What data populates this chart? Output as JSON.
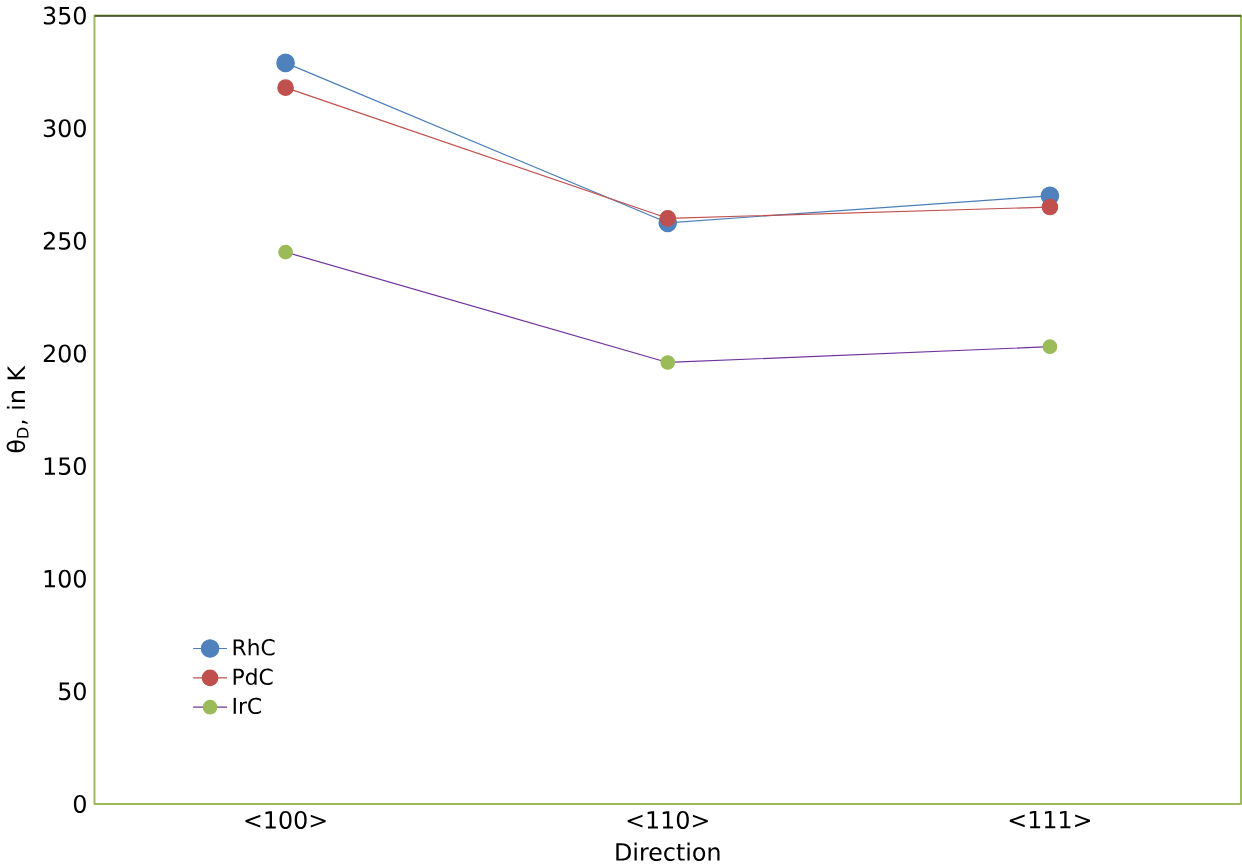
{
  "chart_data": {
    "type": "line",
    "xlabel": "Direction",
    "ylabel": "θ$_{D}$, in K",
    "categories": [
      "<100>",
      "<110>",
      "<111>"
    ],
    "series": [
      {
        "name": "RhC",
        "color": "#4a7ebb",
        "colors": [
          "#4f81bd",
          "#4f81bd",
          "#4f81bd"
        ],
        "values": [
          329,
          258,
          270
        ]
      },
      {
        "name": "PdC",
        "color": "#c0504d",
        "colors": [
          "#c0504d",
          "#c0504d",
          "#c0504d"
        ],
        "values": [
          318,
          260,
          265
        ]
      },
      {
        "name": "IrC",
        "color": "#7030a0",
        "colors": [
          "#9bbb59",
          "#9bbb59",
          "#9bbb59"
        ],
        "values": [
          245,
          196,
          203
        ]
      }
    ],
    "ylim": [
      0,
      350
    ],
    "yticks": [
      0,
      50,
      100,
      150,
      200,
      250,
      300,
      350
    ],
    "grid": false,
    "legend": "bottom left",
    "marker": "circle",
    "line_style": "solid"
  }
}
